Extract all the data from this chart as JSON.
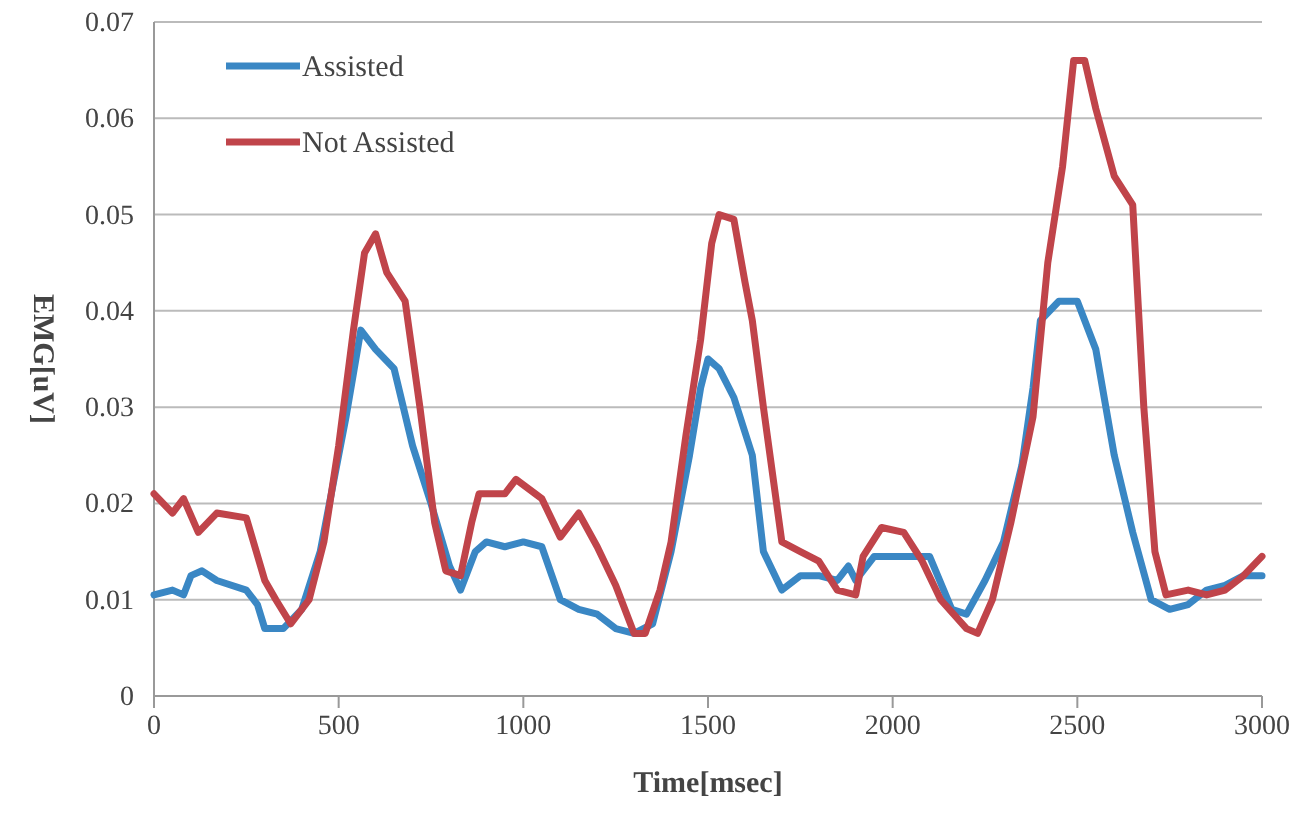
{
  "chart_data": {
    "type": "line",
    "xlabel": "Time[msec]",
    "ylabel": "EMG[uV]",
    "xlim": [
      0,
      3000
    ],
    "xticks": [
      0,
      500,
      1000,
      1500,
      2000,
      2500,
      3000
    ],
    "ylim": [
      0,
      0.07
    ],
    "yticks": [
      0,
      0.01,
      0.02,
      0.03,
      0.04,
      0.05,
      0.06,
      0.07
    ],
    "grid": "y",
    "legend": "top left",
    "marker": "none",
    "line_style": "solid",
    "series": [
      {
        "name": "Assisted",
        "color": "#3a87c4",
        "x": [
          0,
          50,
          80,
          100,
          130,
          170,
          250,
          280,
          300,
          350,
          400,
          450,
          480,
          520,
          560,
          600,
          650,
          700,
          750,
          800,
          830,
          870,
          900,
          950,
          1000,
          1050,
          1100,
          1150,
          1200,
          1250,
          1300,
          1350,
          1400,
          1450,
          1480,
          1500,
          1530,
          1570,
          1620,
          1650,
          1700,
          1750,
          1800,
          1850,
          1880,
          1900,
          1950,
          2050,
          2100,
          2160,
          2200,
          2250,
          2300,
          2350,
          2380,
          2400,
          2450,
          2500,
          2550,
          2600,
          2650,
          2700,
          2750,
          2800,
          2850,
          2900,
          2950,
          3000
        ],
        "values": [
          0.0105,
          0.011,
          0.0105,
          0.0125,
          0.013,
          0.012,
          0.011,
          0.0095,
          0.007,
          0.007,
          0.009,
          0.015,
          0.021,
          0.029,
          0.038,
          0.036,
          0.034,
          0.026,
          0.02,
          0.0135,
          0.011,
          0.015,
          0.016,
          0.0155,
          0.016,
          0.0155,
          0.01,
          0.009,
          0.0085,
          0.007,
          0.0065,
          0.0075,
          0.015,
          0.025,
          0.032,
          0.035,
          0.034,
          0.031,
          0.025,
          0.015,
          0.011,
          0.0125,
          0.0125,
          0.012,
          0.0135,
          0.012,
          0.0145,
          0.0145,
          0.0145,
          0.009,
          0.0085,
          0.012,
          0.016,
          0.024,
          0.032,
          0.039,
          0.041,
          0.041,
          0.036,
          0.025,
          0.017,
          0.01,
          0.009,
          0.0095,
          0.011,
          0.0115,
          0.0125,
          0.0125
        ]
      },
      {
        "name": "Not Assisted",
        "color": "#c0444a",
        "x": [
          0,
          50,
          80,
          120,
          170,
          250,
          300,
          330,
          370,
          420,
          460,
          500,
          540,
          570,
          600,
          630,
          680,
          720,
          760,
          790,
          830,
          860,
          880,
          950,
          980,
          1050,
          1100,
          1150,
          1200,
          1250,
          1300,
          1330,
          1370,
          1400,
          1440,
          1480,
          1510,
          1530,
          1570,
          1600,
          1620,
          1650,
          1700,
          1750,
          1800,
          1850,
          1900,
          1920,
          1970,
          2030,
          2080,
          2130,
          2200,
          2230,
          2270,
          2320,
          2380,
          2420,
          2460,
          2490,
          2520,
          2550,
          2600,
          2650,
          2680,
          2710,
          2740,
          2800,
          2850,
          2900,
          2950,
          3000
        ],
        "values": [
          0.021,
          0.019,
          0.0205,
          0.017,
          0.019,
          0.0185,
          0.012,
          0.01,
          0.0075,
          0.01,
          0.016,
          0.026,
          0.038,
          0.046,
          0.048,
          0.044,
          0.041,
          0.03,
          0.018,
          0.013,
          0.0125,
          0.018,
          0.021,
          0.021,
          0.0225,
          0.0205,
          0.0165,
          0.019,
          0.0155,
          0.0115,
          0.0065,
          0.0065,
          0.011,
          0.016,
          0.027,
          0.037,
          0.047,
          0.05,
          0.0495,
          0.043,
          0.039,
          0.03,
          0.016,
          0.015,
          0.014,
          0.011,
          0.0105,
          0.0145,
          0.0175,
          0.017,
          0.014,
          0.01,
          0.007,
          0.0065,
          0.01,
          0.018,
          0.029,
          0.045,
          0.055,
          0.066,
          0.066,
          0.061,
          0.054,
          0.051,
          0.03,
          0.015,
          0.0105,
          0.011,
          0.0105,
          0.011,
          0.0125,
          0.0145
        ]
      }
    ]
  }
}
